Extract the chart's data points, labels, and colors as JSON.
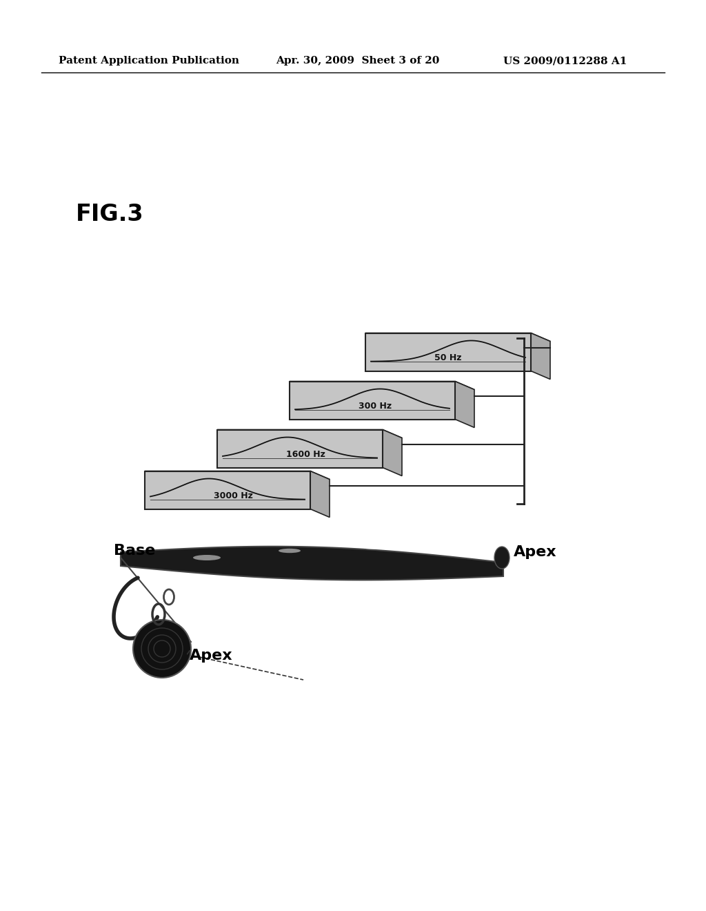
{
  "bg_color": "#ffffff",
  "header_left": "Patent Application Publication",
  "header_mid": "Apr. 30, 2009  Sheet 3 of 20",
  "header_right": "US 2009/0112288 A1",
  "fig_label": "FIG.3",
  "freq_labels": [
    "50 Hz",
    "300 Hz",
    "1600 Hz",
    "3000 Hz"
  ],
  "base_label": "Base",
  "apex_label1": "Apex",
  "apex_label2": "Apex",
  "panel_color": "#cccccc",
  "panel_border": "#333333",
  "cochlea_color": "#222222",
  "text_color": "#000000",
  "line_color": "#000000"
}
